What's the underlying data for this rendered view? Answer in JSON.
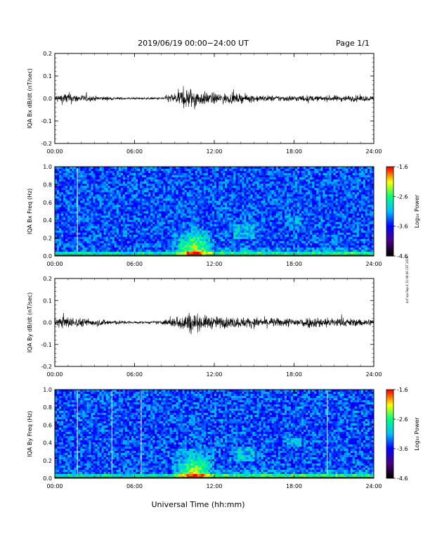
{
  "header": {
    "title": "2019/06/19  00:00−24:00 UT",
    "page": "Page 1/1"
  },
  "side_stamp": "mrf iqa Sep 4 11:08:06 CST 2019",
  "colorscale": {
    "colors": [
      "#000000",
      "#4b0082",
      "#0000ff",
      "#00bfff",
      "#00ff7f",
      "#ffff00",
      "#ff0000"
    ],
    "ticks": [
      "-1.6",
      "-2.6",
      "-3.6",
      "-4.6"
    ],
    "label": "Log₁₀ Power"
  },
  "chart_data": [
    {
      "type": "line",
      "ylabel": "IQA Bx dB/dt (nT/sec)",
      "xlabel": "",
      "x_ticks": [
        "00:00",
        "06:00",
        "12:00",
        "18:00",
        "24:00"
      ],
      "x_range_hours": [
        0,
        24
      ],
      "ylim": [
        -0.2,
        0.2
      ],
      "y_ticks": [
        "0.2",
        "0.1",
        "0.0",
        "-0.1",
        "-0.2"
      ],
      "envelope": {
        "x_hours": [
          0,
          0.5,
          1,
          1.5,
          2,
          3,
          4,
          5,
          6,
          7,
          8,
          8.5,
          9,
          9.5,
          10,
          10.5,
          11,
          11.5,
          12,
          13,
          14,
          15,
          16,
          17,
          18,
          19,
          20,
          21,
          22,
          23,
          24
        ],
        "amplitude": [
          0.03,
          0.04,
          0.05,
          0.035,
          0.03,
          0.02,
          0.015,
          0.01,
          0.008,
          0.008,
          0.01,
          0.03,
          0.045,
          0.07,
          0.09,
          0.08,
          0.055,
          0.05,
          0.045,
          0.04,
          0.035,
          0.03,
          0.025,
          0.025,
          0.025,
          0.025,
          0.02,
          0.025,
          0.025,
          0.025,
          0.02
        ]
      }
    },
    {
      "type": "heatmap",
      "ylabel": "IQA Bx Freq (Hz)",
      "x_ticks": [
        "00:00",
        "06:00",
        "12:00",
        "18:00",
        "24:00"
      ],
      "y_ticks": [
        "1.0",
        "0.8",
        "0.6",
        "0.4",
        "0.2",
        "0.0"
      ],
      "ylim": [
        0,
        1
      ],
      "zlim": [
        -4.6,
        -1.6
      ],
      "zlabel": "Log₁₀ Power",
      "enhancement_hours": [
        9.5,
        11.5
      ],
      "gap_lines_hours": [
        1.7
      ]
    },
    {
      "type": "line",
      "ylabel": "IQA By dB/dt (nT/sec)",
      "xlabel": "",
      "x_ticks": [
        "00:00",
        "06:00",
        "12:00",
        "18:00",
        "24:00"
      ],
      "x_range_hours": [
        0,
        24
      ],
      "ylim": [
        -0.2,
        0.2
      ],
      "y_ticks": [
        "0.2",
        "0.1",
        "0.0",
        "-0.1",
        "-0.2"
      ],
      "envelope": {
        "x_hours": [
          0,
          0.5,
          1,
          1.5,
          2,
          3,
          4,
          5,
          6,
          7,
          8,
          8.5,
          9,
          9.5,
          10,
          10.5,
          11,
          11.5,
          12,
          13,
          14,
          15,
          16,
          17,
          18,
          19,
          20,
          21,
          22,
          23,
          24
        ],
        "amplitude": [
          0.035,
          0.045,
          0.05,
          0.04,
          0.035,
          0.03,
          0.025,
          0.015,
          0.01,
          0.01,
          0.015,
          0.03,
          0.045,
          0.06,
          0.085,
          0.075,
          0.06,
          0.055,
          0.05,
          0.045,
          0.045,
          0.04,
          0.04,
          0.035,
          0.04,
          0.045,
          0.045,
          0.04,
          0.035,
          0.03,
          0.03
        ]
      }
    },
    {
      "type": "heatmap",
      "ylabel": "IQA By Freq (Hz)",
      "xlabel": "Universal Time (hh:mm)",
      "x_ticks": [
        "00:00",
        "06:00",
        "12:00",
        "18:00",
        "24:00"
      ],
      "y_ticks": [
        "1.0",
        "0.8",
        "0.6",
        "0.4",
        "0.2",
        "0.0"
      ],
      "ylim": [
        0,
        1
      ],
      "zlim": [
        -4.6,
        -1.6
      ],
      "zlabel": "Log₁₀ Power",
      "enhancement_hours": [
        9.5,
        11.5
      ],
      "gap_lines_hours": [
        1.7,
        4.3,
        6.5,
        20.5
      ]
    }
  ]
}
